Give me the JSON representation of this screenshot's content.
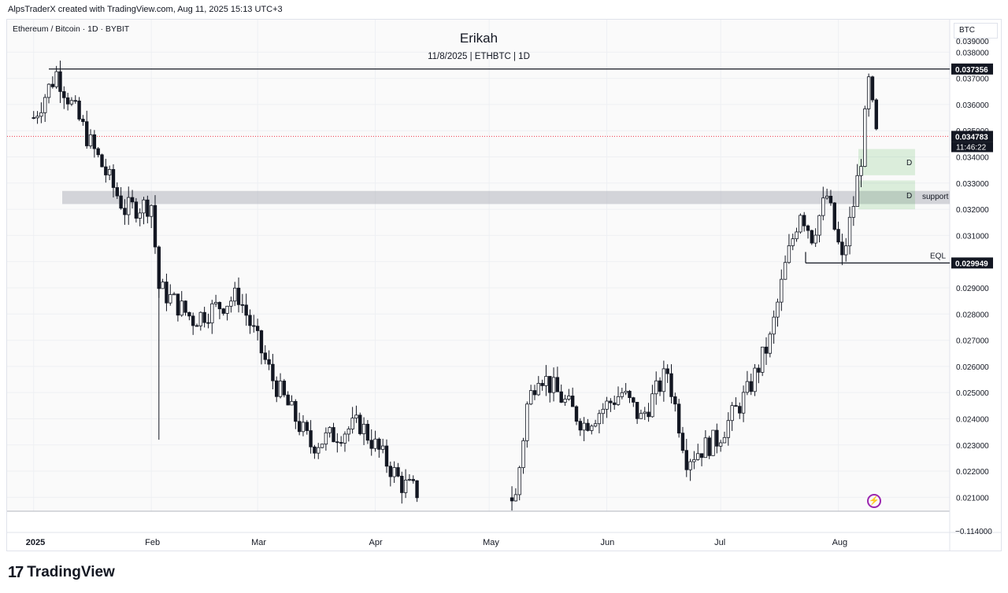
{
  "header": {
    "attribution": "AlpsTraderX created with TradingView.com, Aug 11, 2025 15:13 UTC+3",
    "symbol": "Ethereum / Bitcoin · 1D · BYBIT",
    "title": "Erikah",
    "subtitle": "11/8/2025 | ETHBTC | 1D",
    "currency": "BTC"
  },
  "footer": {
    "brand": "TradingView"
  },
  "colors": {
    "up": "#ffffff",
    "down": "#131722",
    "zone_gray": "#b2b5be",
    "zone_green": "#4caf50",
    "price_line": "#f23645"
  },
  "chart_data": {
    "type": "candlestick",
    "y_ticks": [
      "0.038000",
      "0.037000",
      "0.036000",
      "0.035000",
      "0.034000",
      "0.033000",
      "0.032000",
      "0.031000",
      "0.030000",
      "0.029000",
      "0.028000",
      "0.027000",
      "0.026000",
      "0.025000",
      "0.024000",
      "0.023000",
      "0.022000",
      "0.021000"
    ],
    "x_ticks": [
      "2025",
      "Feb",
      "Mar",
      "Apr",
      "May",
      "Jun",
      "Jul",
      "Aug"
    ],
    "ylim": [
      0.0207,
      0.0392
    ],
    "bottom_axis_label": "−0.114000",
    "price_labels": [
      {
        "value": 0.037356,
        "text": "0.037356"
      },
      {
        "value": 0.029949,
        "text": "0.029949"
      }
    ],
    "last_price": {
      "value": 0.034783,
      "text": "0.034783",
      "countdown": "11:46:22"
    },
    "zones": [
      {
        "label": "support",
        "y_top": 0.0327,
        "y_bottom": 0.0322,
        "color": "gray"
      },
      {
        "label": "D",
        "y_top": 0.0343,
        "y_bottom": 0.0333,
        "color": "green"
      },
      {
        "label": "D",
        "y_top": 0.0331,
        "y_bottom": 0.032,
        "color": "green"
      }
    ],
    "annotations": [
      {
        "label": "EQL",
        "value": 0.029949
      }
    ],
    "resistance": 0.037356,
    "key_points": [
      {
        "date": "2025-01-01",
        "close": 0.0355
      },
      {
        "date": "2025-01-07",
        "close": 0.0372
      },
      {
        "date": "2025-01-16",
        "close": 0.0345
      },
      {
        "date": "2025-01-25",
        "close": 0.032
      },
      {
        "date": "2025-02-01",
        "close": 0.0322
      },
      {
        "date": "2025-02-03",
        "close": 0.029
      },
      {
        "date": "2025-02-12",
        "close": 0.0278
      },
      {
        "date": "2025-02-24",
        "close": 0.0287
      },
      {
        "date": "2025-03-05",
        "close": 0.0255
      },
      {
        "date": "2025-03-15",
        "close": 0.023
      },
      {
        "date": "2025-03-28",
        "close": 0.0238
      },
      {
        "date": "2025-04-08",
        "close": 0.0215
      },
      {
        "date": "2025-04-15",
        "close": 0.021
      },
      {
        "date": "2025-05-08",
        "close": 0.021
      },
      {
        "date": "2025-05-11",
        "close": 0.0245
      },
      {
        "date": "2025-05-14",
        "close": 0.0258
      },
      {
        "date": "2025-05-26",
        "close": 0.0238
      },
      {
        "date": "2025-06-05",
        "close": 0.025
      },
      {
        "date": "2025-06-10",
        "close": 0.024
      },
      {
        "date": "2025-06-17",
        "close": 0.0258
      },
      {
        "date": "2025-06-22",
        "close": 0.0225
      },
      {
        "date": "2025-06-30",
        "close": 0.0232
      },
      {
        "date": "2025-07-08",
        "close": 0.025
      },
      {
        "date": "2025-07-14",
        "close": 0.027
      },
      {
        "date": "2025-07-18",
        "close": 0.0298
      },
      {
        "date": "2025-07-22",
        "close": 0.032
      },
      {
        "date": "2025-07-25",
        "close": 0.031
      },
      {
        "date": "2025-07-29",
        "close": 0.0325
      },
      {
        "date": "2025-08-02",
        "close": 0.03
      },
      {
        "date": "2025-08-05",
        "close": 0.0322
      },
      {
        "date": "2025-08-07",
        "close": 0.034
      },
      {
        "date": "2025-08-09",
        "close": 0.0368
      },
      {
        "date": "2025-08-11",
        "close": 0.0348
      }
    ]
  }
}
